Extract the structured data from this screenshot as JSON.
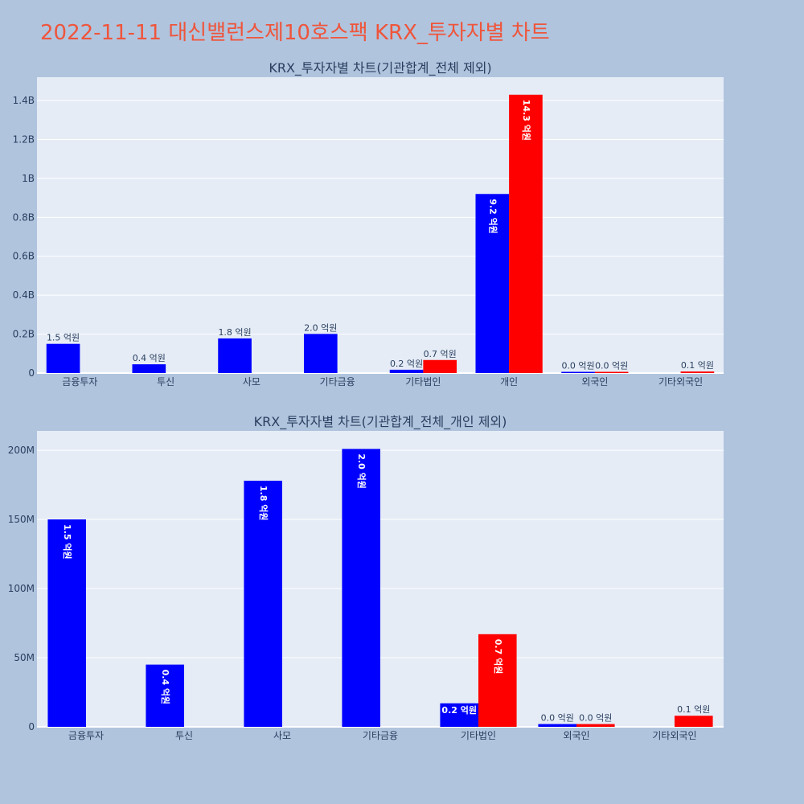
{
  "page": {
    "title": "2022-11-11 대신밸런스제10호스팩 KRX_투자자별 차트"
  },
  "colors": {
    "background": "#b0c4de",
    "plot_bg": "#e5ecf6",
    "title": "#ef553b",
    "series_a": "#0000ff",
    "series_b": "#ff0000",
    "text": "#2a3f5f"
  },
  "chart_data": [
    {
      "type": "bar",
      "title": "KRX_투자자별 차트(기관합계_전체 제외)",
      "categories": [
        "금융투자",
        "투신",
        "사모",
        "기타금융",
        "기타법인",
        "개인",
        "외국인",
        "기타외국인"
      ],
      "series": [
        {
          "color": "#0000ff",
          "values": [
            150000000,
            45000000,
            178000000,
            201000000,
            17000000,
            920000000,
            2000000,
            null
          ],
          "labels": [
            "1.5 억원",
            "0.4 억원",
            "1.8 억원",
            "2.0 억원",
            "0.2 억원",
            "9.2 억원",
            "0.0 억원",
            ""
          ]
        },
        {
          "color": "#ff0000",
          "values": [
            null,
            null,
            null,
            null,
            67000000,
            1430000000,
            2000000,
            8000000
          ],
          "labels": [
            "",
            "",
            "",
            "",
            "0.7 억원",
            "14.3 억원",
            "0.0 억원",
            "0.1 억원"
          ]
        }
      ],
      "ylim": [
        0,
        1520000000
      ],
      "yticks": [
        0,
        200000000,
        400000000,
        600000000,
        800000000,
        1000000000,
        1200000000,
        1400000000
      ],
      "ytick_labels": [
        "0",
        "0.2B",
        "0.4B",
        "0.6B",
        "0.8B",
        "1B",
        "1.2B",
        "1.4B"
      ],
      "grid": true
    },
    {
      "type": "bar",
      "title": "KRX_투자자별 차트(기관합계_전체_개인 제외)",
      "categories": [
        "금융투자",
        "투신",
        "사모",
        "기타금융",
        "기타법인",
        "외국인",
        "기타외국인"
      ],
      "series": [
        {
          "color": "#0000ff",
          "values": [
            150000000,
            45000000,
            178000000,
            201000000,
            17000000,
            2000000,
            null
          ],
          "labels": [
            "1.5 억원",
            "0.4 억원",
            "1.8 억원",
            "2.0 억원",
            "0.2 억원",
            "0.0 억원",
            ""
          ]
        },
        {
          "color": "#ff0000",
          "values": [
            null,
            null,
            null,
            null,
            67000000,
            2000000,
            8000000
          ],
          "labels": [
            "",
            "",
            "",
            "",
            "0.7 억원",
            "0.0 억원",
            "0.1 억원"
          ]
        }
      ],
      "ylim": [
        0,
        214000000
      ],
      "yticks": [
        0,
        50000000,
        100000000,
        150000000,
        200000000
      ],
      "ytick_labels": [
        "0",
        "50M",
        "100M",
        "150M",
        "200M"
      ],
      "grid": true
    }
  ]
}
